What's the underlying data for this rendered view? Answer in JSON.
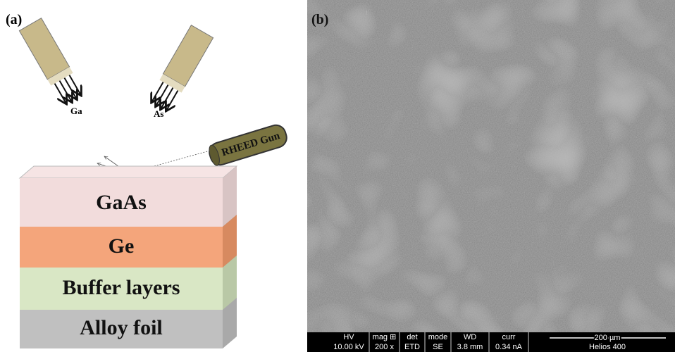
{
  "panel_a": {
    "label": "(a)",
    "sources": [
      "Ga",
      "As"
    ],
    "rheed": "RHEED Gun",
    "layers": [
      "GaAs",
      "Ge",
      "Buffer layers",
      "Alloy foil"
    ]
  },
  "panel_b": {
    "label": "(b)",
    "info_bar": {
      "headers": [
        "HV",
        "mag ⊞",
        "det",
        "mode",
        "WD",
        "curr"
      ],
      "values": [
        "10.00 kV",
        "200 x",
        "ETD",
        "SE",
        "3.8 mm",
        "0.34 nA"
      ],
      "scale": "200 µm",
      "instrument": "Helios 400"
    }
  }
}
